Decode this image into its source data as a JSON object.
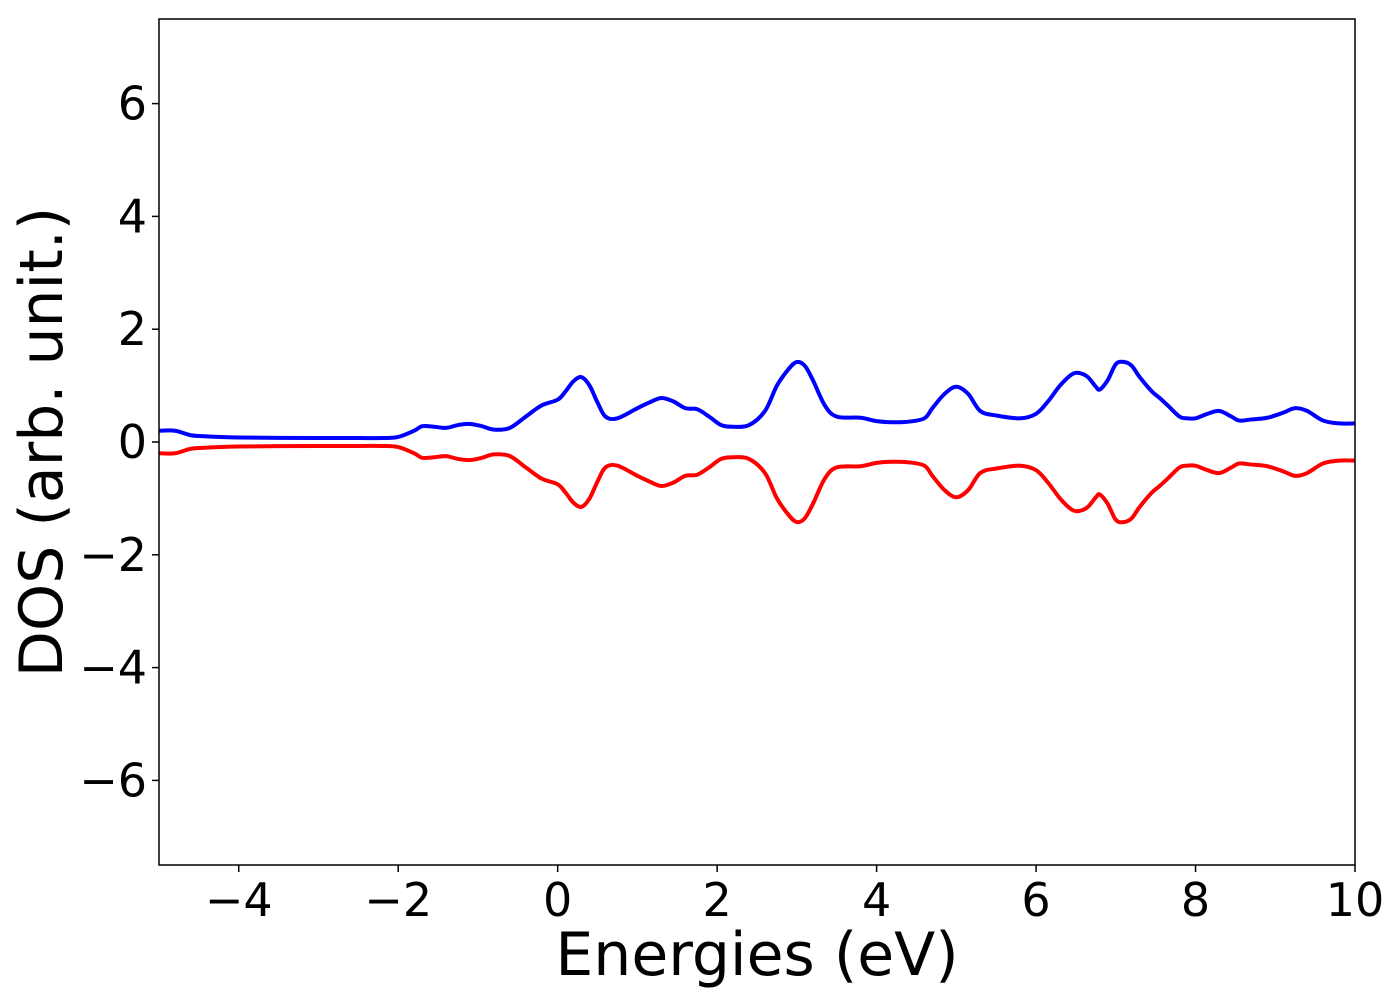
{
  "chart_data": {
    "type": "line",
    "xlabel": "Energies (eV)",
    "ylabel": "DOS (arb. unit.)",
    "xlim": [
      -5,
      10
    ],
    "ylim": [
      -7.5,
      7.5
    ],
    "xticks": [
      -4,
      -2,
      0,
      2,
      4,
      6,
      8,
      10
    ],
    "xtick_labels": [
      "−4",
      "−2",
      "0",
      "2",
      "4",
      "6",
      "8",
      "10"
    ],
    "yticks": [
      6,
      4,
      2,
      0,
      -2,
      -4,
      -6
    ],
    "ytick_labels": [
      "6",
      "4",
      "2",
      "0",
      "−2",
      "−4",
      "−6"
    ],
    "grid": false,
    "legend": false,
    "series": [
      {
        "color": "#0000ff",
        "x": [
          -5.0,
          -4.8,
          -4.6,
          -4.4,
          -4.0,
          -3.0,
          -2.5,
          -2.2,
          -2.0,
          -1.8,
          -1.7,
          -1.55,
          -1.4,
          -1.25,
          -1.1,
          -0.95,
          -0.8,
          -0.6,
          -0.4,
          -0.2,
          0.0,
          0.1,
          0.2,
          0.3,
          0.4,
          0.5,
          0.6,
          0.75,
          1.0,
          1.15,
          1.3,
          1.45,
          1.6,
          1.75,
          1.9,
          2.05,
          2.2,
          2.4,
          2.6,
          2.75,
          2.9,
          3.0,
          3.1,
          3.2,
          3.35,
          3.5,
          3.8,
          4.0,
          4.2,
          4.4,
          4.6,
          4.7,
          4.85,
          5.0,
          5.15,
          5.3,
          5.5,
          5.8,
          6.0,
          6.15,
          6.3,
          6.45,
          6.55,
          6.65,
          6.75,
          6.8,
          6.9,
          7.0,
          7.1,
          7.2,
          7.3,
          7.45,
          7.55,
          7.65,
          7.8,
          7.9,
          8.0,
          8.15,
          8.3,
          8.45,
          8.55,
          8.7,
          8.9,
          9.1,
          9.25,
          9.4,
          9.6,
          9.8,
          10.0
        ],
        "y": [
          0.2,
          0.2,
          0.12,
          0.1,
          0.08,
          0.07,
          0.07,
          0.07,
          0.09,
          0.2,
          0.28,
          0.27,
          0.25,
          0.3,
          0.32,
          0.28,
          0.22,
          0.25,
          0.45,
          0.65,
          0.75,
          0.9,
          1.08,
          1.15,
          1.0,
          0.7,
          0.45,
          0.42,
          0.6,
          0.7,
          0.78,
          0.72,
          0.6,
          0.58,
          0.45,
          0.3,
          0.27,
          0.3,
          0.55,
          1.0,
          1.3,
          1.42,
          1.35,
          1.1,
          0.65,
          0.45,
          0.43,
          0.37,
          0.35,
          0.36,
          0.42,
          0.6,
          0.85,
          0.98,
          0.85,
          0.55,
          0.47,
          0.42,
          0.5,
          0.72,
          1.0,
          1.2,
          1.22,
          1.15,
          0.98,
          0.93,
          1.1,
          1.38,
          1.42,
          1.35,
          1.15,
          0.9,
          0.78,
          0.65,
          0.45,
          0.42,
          0.42,
          0.5,
          0.55,
          0.45,
          0.38,
          0.4,
          0.43,
          0.52,
          0.6,
          0.55,
          0.38,
          0.33,
          0.33
        ]
      },
      {
        "color": "#ff0000",
        "x": [
          -5.0,
          -4.8,
          -4.6,
          -4.4,
          -4.0,
          -3.0,
          -2.5,
          -2.2,
          -2.0,
          -1.8,
          -1.7,
          -1.55,
          -1.4,
          -1.25,
          -1.1,
          -0.95,
          -0.8,
          -0.6,
          -0.4,
          -0.2,
          0.0,
          0.1,
          0.2,
          0.3,
          0.4,
          0.5,
          0.6,
          0.75,
          1.0,
          1.15,
          1.3,
          1.45,
          1.6,
          1.75,
          1.9,
          2.05,
          2.2,
          2.4,
          2.6,
          2.75,
          2.9,
          3.0,
          3.1,
          3.2,
          3.35,
          3.5,
          3.8,
          4.0,
          4.2,
          4.4,
          4.6,
          4.7,
          4.85,
          5.0,
          5.15,
          5.3,
          5.5,
          5.8,
          6.0,
          6.15,
          6.3,
          6.45,
          6.55,
          6.65,
          6.75,
          6.8,
          6.9,
          7.0,
          7.1,
          7.2,
          7.3,
          7.45,
          7.55,
          7.65,
          7.8,
          7.9,
          8.0,
          8.15,
          8.3,
          8.45,
          8.55,
          8.7,
          8.9,
          9.1,
          9.25,
          9.4,
          9.6,
          9.8,
          10.0
        ],
        "y": [
          -0.2,
          -0.2,
          -0.12,
          -0.1,
          -0.08,
          -0.07,
          -0.07,
          -0.07,
          -0.09,
          -0.2,
          -0.28,
          -0.27,
          -0.25,
          -0.3,
          -0.32,
          -0.28,
          -0.22,
          -0.25,
          -0.45,
          -0.65,
          -0.75,
          -0.9,
          -1.08,
          -1.15,
          -1.0,
          -0.7,
          -0.45,
          -0.42,
          -0.6,
          -0.7,
          -0.78,
          -0.72,
          -0.6,
          -0.58,
          -0.45,
          -0.3,
          -0.27,
          -0.3,
          -0.55,
          -1.0,
          -1.3,
          -1.42,
          -1.35,
          -1.1,
          -0.65,
          -0.45,
          -0.43,
          -0.37,
          -0.35,
          -0.36,
          -0.42,
          -0.6,
          -0.85,
          -0.98,
          -0.85,
          -0.55,
          -0.47,
          -0.42,
          -0.5,
          -0.72,
          -1.0,
          -1.2,
          -1.22,
          -1.15,
          -0.98,
          -0.93,
          -1.1,
          -1.38,
          -1.42,
          -1.35,
          -1.15,
          -0.9,
          -0.78,
          -0.65,
          -0.45,
          -0.42,
          -0.42,
          -0.5,
          -0.55,
          -0.45,
          -0.38,
          -0.4,
          -0.43,
          -0.52,
          -0.6,
          -0.55,
          -0.38,
          -0.33,
          -0.33
        ]
      }
    ]
  }
}
